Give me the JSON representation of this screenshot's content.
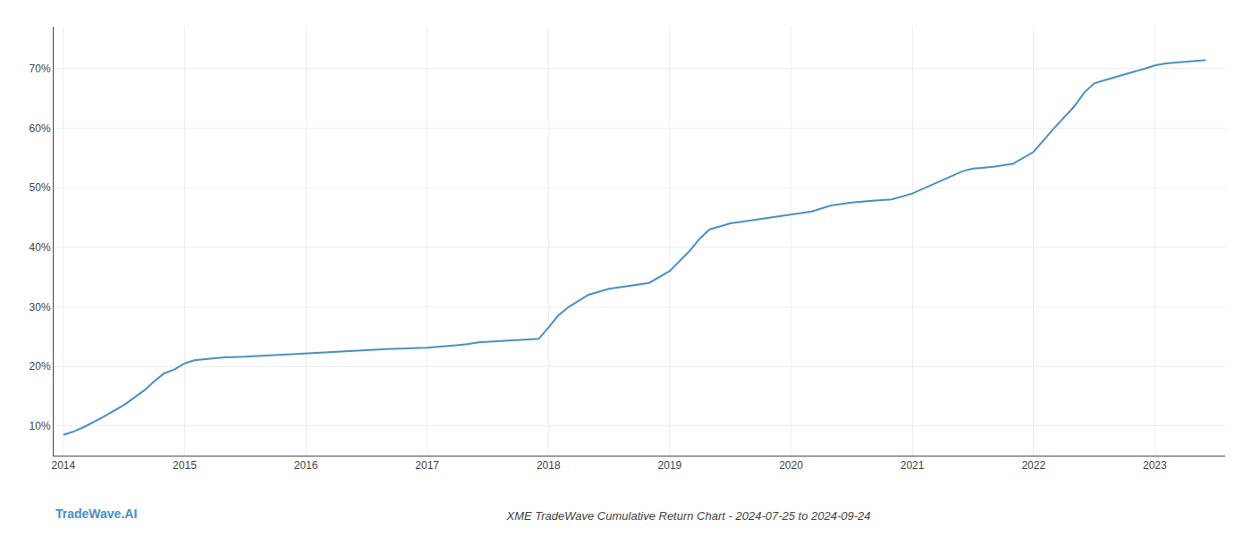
{
  "chart_data": {
    "type": "line",
    "title": "XME TradeWave Cumulative Return Chart - 2024-07-25 to 2024-09-24",
    "annotations": [
      "TradeWave.AI"
    ],
    "color": "#4a90c4",
    "x": [
      2014.0,
      2014.08,
      2014.17,
      2014.33,
      2014.5,
      2014.67,
      2014.75,
      2014.83,
      2014.92,
      2015.0,
      2015.08,
      2015.17,
      2015.25,
      2015.33,
      2015.5,
      2015.67,
      2015.83,
      2016.0,
      2016.17,
      2016.33,
      2016.5,
      2016.67,
      2016.83,
      2017.0,
      2017.17,
      2017.33,
      2017.42,
      2017.5,
      2017.58,
      2017.67,
      2017.75,
      2017.83,
      2017.92,
      2018.0,
      2018.08,
      2018.17,
      2018.25,
      2018.33,
      2018.5,
      2018.67,
      2018.83,
      2019.0,
      2019.17,
      2019.25,
      2019.33,
      2019.42,
      2019.5,
      2019.67,
      2019.83,
      2020.0,
      2020.17,
      2020.33,
      2020.5,
      2020.67,
      2020.83,
      2021.0,
      2021.17,
      2021.33,
      2021.42,
      2021.5,
      2021.67,
      2021.83,
      2022.0,
      2022.17,
      2022.33,
      2022.42,
      2022.5,
      2022.58,
      2022.67,
      2022.75,
      2022.83,
      2022.92,
      2023.0,
      2023.08,
      2023.17,
      2023.33,
      2023.42
    ],
    "values": [
      8.5,
      9.0,
      9.8,
      11.5,
      13.5,
      16.0,
      17.5,
      18.8,
      19.5,
      20.5,
      21.0,
      21.2,
      21.4,
      21.5,
      21.6,
      21.8,
      22.0,
      22.2,
      22.4,
      22.6,
      22.8,
      22.9,
      23.0,
      23.1,
      23.4,
      23.7,
      24.0,
      24.1,
      24.2,
      24.3,
      24.4,
      24.5,
      24.6,
      26.5,
      28.5,
      30.0,
      31.0,
      32.0,
      33.0,
      33.5,
      34.0,
      36.0,
      39.5,
      41.5,
      43.0,
      43.5,
      44.0,
      44.5,
      45.0,
      45.5,
      46.0,
      47.0,
      47.5,
      47.8,
      48.0,
      49.0,
      50.5,
      52.0,
      52.8,
      53.2,
      53.5,
      54.0,
      56.0,
      60.0,
      63.5,
      66.0,
      67.5,
      68.0,
      68.5,
      69.0,
      69.5,
      70.0,
      70.5,
      70.8,
      71.0,
      71.2,
      71.4
    ],
    "xlim": [
      2013.92,
      2023.58
    ],
    "xticks": [
      2014,
      2015,
      2016,
      2017,
      2018,
      2019,
      2020,
      2021,
      2022,
      2023
    ],
    "ylim": [
      5,
      77
    ],
    "yticks": [
      {
        "value": 10,
        "label": "10%"
      },
      {
        "value": 20,
        "label": "20%"
      },
      {
        "value": 30,
        "label": "30%"
      },
      {
        "value": 40,
        "label": "40%"
      },
      {
        "value": 50,
        "label": "50%"
      },
      {
        "value": 60,
        "label": "60%"
      },
      {
        "value": 70,
        "label": "70%"
      }
    ],
    "grid": true
  }
}
